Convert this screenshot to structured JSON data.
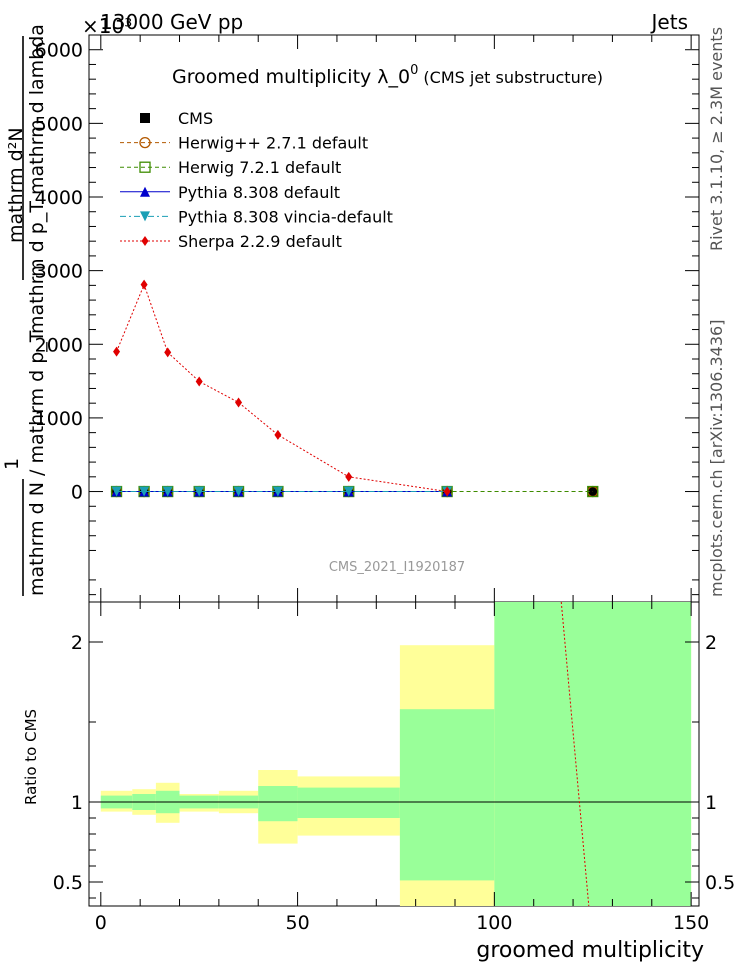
{
  "header": {
    "left": "13000 GeV pp",
    "right": "Jets",
    "exponent": "×10³"
  },
  "side_labels": {
    "rivet": "Rivet 3.1.10, ≥ 2.3M events",
    "mcplots": "mcplots.cern.ch [arXiv:1306.3436]"
  },
  "watermark": "CMS_2021_I1920187",
  "chart_data": [
    {
      "type": "line",
      "title": "Groomed multiplicity  λ_0⁰ (CMS jet substructure)",
      "title_main": "Groomed multiplicity  λ_0",
      "title_sup": "0",
      "title_paren": "(CMS jet substructure)",
      "ylabel_numerator": "mathrm d²N",
      "ylabel_numerator_denominator": "mathrm d p_T mathrm d lambda",
      "ylabel_prefix": "1",
      "ylabel_denominator": "mathrm d N / mathrm d p_T",
      "ylim": [
        -1500,
        6200
      ],
      "yticks": [
        0,
        1000,
        2000,
        3000,
        4000,
        5000,
        6000
      ],
      "ytick_labels": [
        "0",
        "1000",
        "2000",
        "3000",
        "4000",
        "5000",
        "6000"
      ],
      "xlim": [
        -3,
        152
      ],
      "legend_position": "top-left",
      "series": [
        {
          "name": "CMS",
          "color": "#000000",
          "marker": "square-filled",
          "line": "none",
          "x": [
            4,
            11,
            17,
            25,
            35,
            45,
            63,
            88,
            125
          ],
          "y": [
            0,
            0,
            0,
            0,
            0,
            0,
            0,
            0,
            0
          ]
        },
        {
          "name": "Herwig++ 2.7.1 default",
          "color": "#b35900",
          "marker": "circle-open",
          "line": "dashed",
          "x": [
            4,
            11,
            17,
            25,
            35,
            45,
            63,
            88,
            125
          ],
          "y": [
            0,
            0,
            0,
            0,
            0,
            0,
            0,
            0,
            0
          ]
        },
        {
          "name": "Herwig 7.2.1 default",
          "color": "#3d8c00",
          "marker": "square-open",
          "line": "dashed",
          "x": [
            4,
            11,
            17,
            25,
            35,
            45,
            63,
            88,
            125
          ],
          "y": [
            0,
            0,
            0,
            0,
            0,
            0,
            0,
            0,
            0
          ]
        },
        {
          "name": "Pythia 8.308 default",
          "color": "#0000cc",
          "marker": "triangle-up",
          "line": "solid",
          "x": [
            4,
            11,
            17,
            25,
            35,
            45,
            63,
            88
          ],
          "y": [
            0,
            0,
            0,
            0,
            0,
            0,
            0,
            0
          ]
        },
        {
          "name": "Pythia 8.308 vincia-default",
          "color": "#1a9fb5",
          "marker": "triangle-down",
          "line": "dashdot",
          "x": [
            4,
            11,
            17,
            25,
            35,
            45,
            63,
            88
          ],
          "y": [
            0,
            0,
            0,
            0,
            0,
            0,
            0,
            0
          ]
        },
        {
          "name": "Sherpa 2.2.9 default",
          "color": "#e00000",
          "marker": "diamond",
          "line": "dotted",
          "x": [
            4,
            11,
            17,
            25,
            35,
            45,
            63,
            88
          ],
          "y": [
            1900,
            2810,
            1890,
            1495,
            1210,
            770,
            200,
            0
          ]
        }
      ]
    },
    {
      "type": "area",
      "ylabel": "Ratio to CMS",
      "xlabel": "groomed multiplicity",
      "xlim": [
        -3,
        152
      ],
      "ylim": [
        0.35,
        2.25
      ],
      "xticks": [
        0,
        50,
        100,
        150
      ],
      "xtick_labels": [
        "0",
        "50",
        "100",
        "150"
      ],
      "yticks": [
        0.5,
        1,
        2
      ],
      "ytick_labels": [
        "0.5",
        "1",
        "2"
      ],
      "band_colors": {
        "outer": "#ffff99",
        "inner": "#99ff99"
      },
      "bins": [
        {
          "x0": 0,
          "x1": 8,
          "outer": [
            0.94,
            1.07
          ],
          "inner": [
            0.96,
            1.04
          ]
        },
        {
          "x0": 8,
          "x1": 14,
          "outer": [
            0.92,
            1.08
          ],
          "inner": [
            0.95,
            1.05
          ]
        },
        {
          "x0": 14,
          "x1": 20,
          "outer": [
            0.87,
            1.12
          ],
          "inner": [
            0.93,
            1.07
          ]
        },
        {
          "x0": 20,
          "x1": 30,
          "outer": [
            0.94,
            1.05
          ],
          "inner": [
            0.96,
            1.04
          ]
        },
        {
          "x0": 30,
          "x1": 40,
          "outer": [
            0.93,
            1.07
          ],
          "inner": [
            0.96,
            1.04
          ]
        },
        {
          "x0": 40,
          "x1": 50,
          "outer": [
            0.74,
            1.2
          ],
          "inner": [
            0.88,
            1.1
          ]
        },
        {
          "x0": 50,
          "x1": 76,
          "outer": [
            0.79,
            1.16
          ],
          "inner": [
            0.9,
            1.09
          ]
        },
        {
          "x0": 76,
          "x1": 100,
          "outer": [
            0.35,
            1.98
          ],
          "inner": [
            0.51,
            1.58
          ]
        },
        {
          "x0": 100,
          "x1": 150,
          "outer": [
            0.35,
            2.25
          ],
          "inner": [
            0.35,
            2.25
          ]
        }
      ],
      "sherpa_ratio": {
        "color": "#e00000",
        "x": [
          117,
          124
        ],
        "y": [
          2.25,
          0.35
        ]
      }
    }
  ]
}
